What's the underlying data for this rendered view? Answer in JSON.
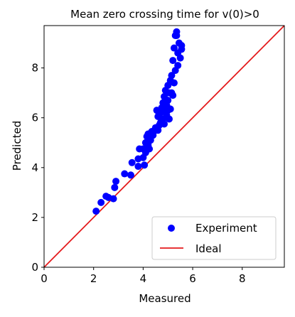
{
  "chart_data": {
    "type": "scatter",
    "title": "Mean zero crossing time for v(0)>0",
    "xlabel": "Measured",
    "ylabel": "Predicted",
    "xlim": [
      0,
      9.7
    ],
    "ylim": [
      0,
      9.7
    ],
    "xticks": [
      "0",
      "2",
      "4",
      "6",
      "8"
    ],
    "yticks": [
      "0",
      "2",
      "4",
      "6",
      "8"
    ],
    "grid": false,
    "legend_position": "lower-right",
    "series": [
      {
        "name": "Experiment",
        "kind": "scatter",
        "color": "#0000ff",
        "points": [
          [
            2.1,
            2.25
          ],
          [
            2.3,
            2.6
          ],
          [
            2.5,
            2.85
          ],
          [
            2.6,
            2.8
          ],
          [
            2.8,
            2.75
          ],
          [
            2.85,
            3.2
          ],
          [
            2.9,
            3.45
          ],
          [
            3.25,
            3.75
          ],
          [
            3.5,
            3.7
          ],
          [
            3.55,
            4.2
          ],
          [
            3.8,
            4.05
          ],
          [
            3.8,
            4.35
          ],
          [
            3.85,
            4.75
          ],
          [
            4.0,
            4.4
          ],
          [
            4.05,
            4.1
          ],
          [
            4.0,
            4.75
          ],
          [
            4.1,
            4.6
          ],
          [
            4.1,
            5.0
          ],
          [
            4.15,
            5.25
          ],
          [
            4.2,
            4.9
          ],
          [
            4.2,
            5.35
          ],
          [
            4.25,
            4.75
          ],
          [
            4.3,
            5.1
          ],
          [
            4.35,
            5.45
          ],
          [
            4.4,
            5.3
          ],
          [
            4.5,
            5.5
          ],
          [
            4.5,
            5.6
          ],
          [
            4.55,
            6.3
          ],
          [
            4.6,
            6.05
          ],
          [
            4.6,
            5.5
          ],
          [
            4.7,
            5.8
          ],
          [
            4.7,
            6.2
          ],
          [
            4.75,
            6.4
          ],
          [
            4.8,
            5.95
          ],
          [
            4.8,
            6.6
          ],
          [
            4.85,
            5.75
          ],
          [
            4.85,
            6.85
          ],
          [
            4.9,
            6.3
          ],
          [
            4.9,
            7.1
          ],
          [
            4.95,
            6.1
          ],
          [
            4.95,
            6.5
          ],
          [
            5.0,
            6.7
          ],
          [
            5.0,
            7.3
          ],
          [
            5.05,
            5.95
          ],
          [
            5.05,
            7.0
          ],
          [
            5.1,
            6.35
          ],
          [
            5.1,
            7.5
          ],
          [
            5.15,
            7.0
          ],
          [
            5.15,
            7.7
          ],
          [
            5.2,
            6.9
          ],
          [
            5.2,
            8.3
          ],
          [
            5.25,
            7.4
          ],
          [
            5.25,
            8.8
          ],
          [
            5.3,
            7.9
          ],
          [
            5.3,
            9.3
          ],
          [
            5.35,
            9.45
          ],
          [
            5.4,
            8.1
          ],
          [
            5.4,
            8.6
          ],
          [
            5.45,
            9.0
          ],
          [
            5.5,
            8.4
          ],
          [
            5.55,
            8.75
          ],
          [
            5.55,
            8.9
          ],
          [
            5.35,
            9.3
          ],
          [
            5.0,
            6.3
          ],
          [
            4.65,
            5.7
          ]
        ]
      },
      {
        "name": "Ideal",
        "kind": "line",
        "color": "#e41a1c",
        "points": [
          [
            0,
            0
          ],
          [
            9.7,
            9.7
          ]
        ]
      }
    ]
  }
}
